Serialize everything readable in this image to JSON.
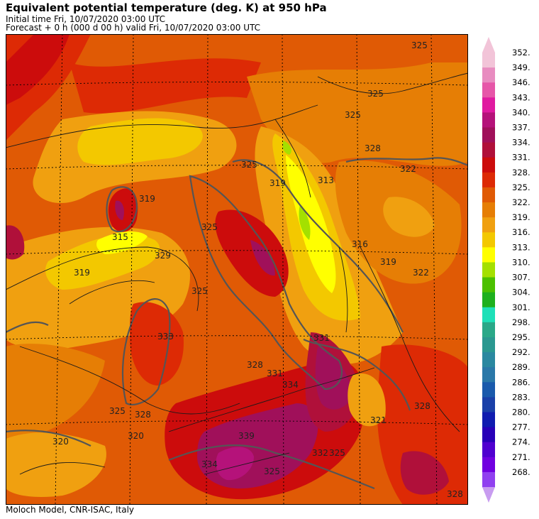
{
  "header": {
    "title": "Equivalent potential temperature (deg. K) at 950 hPa",
    "initial_time": "Initial time  Fri, 10/07/2020  03:00 UTC",
    "forecast": "Forecast  +   0 h  (000 d 00 h)  valid Fri, 10/07/2020 03:00 UTC"
  },
  "footer": "Moloch Model, CNR-ISAC, Italy",
  "colorbar": {
    "levels": [
      "352.",
      "349.",
      "346.",
      "343.",
      "340.",
      "337.",
      "334.",
      "331.",
      "328.",
      "325.",
      "322.",
      "319.",
      "316.",
      "313.",
      "310.",
      "307.",
      "304.",
      "301.",
      "298.",
      "295.",
      "292.",
      "289.",
      "286.",
      "283.",
      "280.",
      "277.",
      "274.",
      "271.",
      "268."
    ],
    "colors": [
      "#f2c4d8",
      "#e88cc0",
      "#e656a8",
      "#e01aa0",
      "#b5127a",
      "#a0105a",
      "#b0103a",
      "#cc0c0c",
      "#dd2a05",
      "#e05a05",
      "#e67e05",
      "#f0a010",
      "#f3c800",
      "#ffff00",
      "#a4e000",
      "#4cc000",
      "#1eb01e",
      "#1ee0b8",
      "#2aa888",
      "#2a9890",
      "#2a88a0",
      "#2a78a8",
      "#1a5aac",
      "#1a40a8",
      "#101cb0",
      "#2800b8",
      "#5000d0",
      "#7000e0",
      "#9040f0"
    ],
    "top_arrow_color": "#f2c4d8",
    "bottom_arrow_color": "#c89cf0"
  },
  "map": {
    "contour_labels": [
      "325",
      "325",
      "325",
      "325",
      "328",
      "322",
      "319",
      "313",
      "316",
      "319",
      "322",
      "319",
      "315",
      "319",
      "325",
      "329",
      "325",
      "333",
      "331",
      "334",
      "328",
      "331",
      "325",
      "328",
      "320",
      "320",
      "339",
      "334",
      "332",
      "325",
      "321",
      "328",
      "328",
      "325"
    ]
  }
}
